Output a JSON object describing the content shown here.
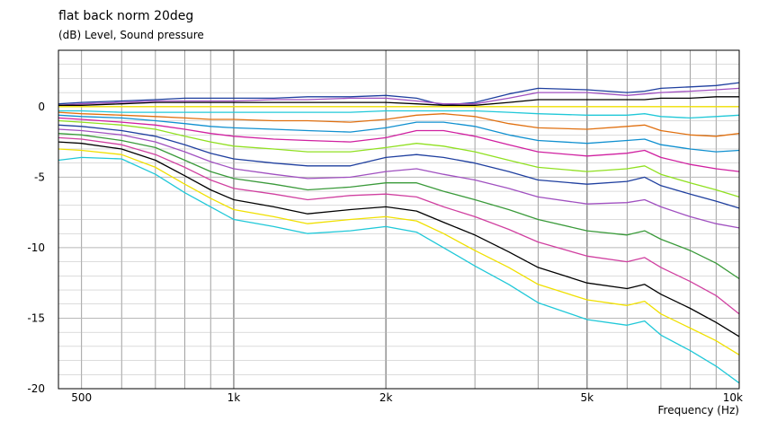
{
  "chart_data": {
    "type": "line",
    "title": "flat back norm 20deg",
    "ylabel": "(dB)  Level, Sound pressure",
    "xlabel": "Frequency  (Hz)",
    "xscale": "log",
    "xlim": [
      450,
      10000
    ],
    "ylim": [
      -20,
      4
    ],
    "grid": true,
    "xtick_labels": [
      {
        "value": 500,
        "label": "500"
      },
      {
        "value": 1000,
        "label": "1k"
      },
      {
        "value": 2000,
        "label": "2k"
      },
      {
        "value": 5000,
        "label": "5k"
      },
      {
        "value": 10000,
        "label": "10k"
      }
    ],
    "ytick_labels": [
      {
        "value": 0,
        "label": "0"
      },
      {
        "value": -5,
        "label": "-5"
      },
      {
        "value": -10,
        "label": "-10"
      },
      {
        "value": -15,
        "label": "-15"
      },
      {
        "value": -20,
        "label": "-20"
      }
    ],
    "x": [
      450,
      500,
      600,
      700,
      800,
      900,
      1000,
      1200,
      1400,
      1700,
      2000,
      2300,
      2600,
      3000,
      3500,
      4000,
      5000,
      6000,
      6500,
      7000,
      8000,
      9000,
      10000
    ],
    "series": [
      {
        "color": "#1f3f9f",
        "values": [
          0.2,
          0.3,
          0.4,
          0.5,
          0.6,
          0.6,
          0.6,
          0.6,
          0.7,
          0.7,
          0.8,
          0.6,
          0.1,
          0.3,
          0.9,
          1.3,
          1.2,
          1.0,
          1.1,
          1.3,
          1.4,
          1.5,
          1.7
        ]
      },
      {
        "color": "#a050c0",
        "values": [
          0.1,
          0.2,
          0.3,
          0.4,
          0.4,
          0.4,
          0.4,
          0.5,
          0.5,
          0.6,
          0.6,
          0.4,
          0.2,
          0.2,
          0.6,
          1.0,
          1.0,
          0.8,
          0.9,
          1.0,
          1.1,
          1.2,
          1.3
        ]
      },
      {
        "color": "#000000",
        "values": [
          0.1,
          0.1,
          0.2,
          0.3,
          0.3,
          0.3,
          0.3,
          0.3,
          0.3,
          0.3,
          0.3,
          0.2,
          0.1,
          0.1,
          0.3,
          0.5,
          0.5,
          0.5,
          0.5,
          0.6,
          0.6,
          0.7,
          0.7
        ]
      },
      {
        "color": "#f0e000",
        "values": [
          0.0,
          0.0,
          0.0,
          0.0,
          0.0,
          0.0,
          0.0,
          0.0,
          0.0,
          0.0,
          0.0,
          0.0,
          0.0,
          0.0,
          0.0,
          0.0,
          0.0,
          0.0,
          0.0,
          0.0,
          0.0,
          0.0,
          0.0
        ]
      },
      {
        "color": "#20c8d8",
        "values": [
          -0.3,
          -0.3,
          -0.4,
          -0.4,
          -0.4,
          -0.4,
          -0.4,
          -0.4,
          -0.4,
          -0.4,
          -0.3,
          -0.3,
          -0.3,
          -0.3,
          -0.4,
          -0.5,
          -0.6,
          -0.6,
          -0.5,
          -0.7,
          -0.8,
          -0.7,
          -0.6
        ]
      },
      {
        "color": "#e07010",
        "values": [
          -0.4,
          -0.5,
          -0.6,
          -0.7,
          -0.8,
          -0.9,
          -0.9,
          -1.0,
          -1.0,
          -1.1,
          -0.9,
          -0.6,
          -0.5,
          -0.7,
          -1.2,
          -1.5,
          -1.6,
          -1.4,
          -1.3,
          -1.7,
          -2.0,
          -2.1,
          -1.9
        ]
      },
      {
        "color": "#1090d0",
        "values": [
          -0.6,
          -0.7,
          -0.8,
          -1.0,
          -1.2,
          -1.4,
          -1.5,
          -1.6,
          -1.7,
          -1.8,
          -1.5,
          -1.1,
          -1.1,
          -1.4,
          -2.0,
          -2.4,
          -2.6,
          -2.4,
          -2.3,
          -2.7,
          -3.0,
          -3.2,
          -3.1
        ]
      },
      {
        "color": "#d020a0",
        "values": [
          -0.8,
          -0.9,
          -1.1,
          -1.3,
          -1.6,
          -1.9,
          -2.1,
          -2.3,
          -2.4,
          -2.5,
          -2.2,
          -1.7,
          -1.7,
          -2.1,
          -2.7,
          -3.2,
          -3.5,
          -3.3,
          -3.1,
          -3.6,
          -4.1,
          -4.4,
          -4.6
        ]
      },
      {
        "color": "#90e020",
        "values": [
          -1.0,
          -1.1,
          -1.3,
          -1.6,
          -2.1,
          -2.5,
          -2.8,
          -3.0,
          -3.2,
          -3.2,
          -2.9,
          -2.6,
          -2.8,
          -3.2,
          -3.8,
          -4.3,
          -4.6,
          -4.4,
          -4.2,
          -4.8,
          -5.4,
          -5.9,
          -6.4
        ]
      },
      {
        "color": "#1f3f9f",
        "values": [
          -1.3,
          -1.4,
          -1.7,
          -2.1,
          -2.7,
          -3.3,
          -3.7,
          -4.0,
          -4.2,
          -4.2,
          -3.6,
          -3.4,
          -3.6,
          -4.0,
          -4.6,
          -5.2,
          -5.5,
          -5.3,
          -5.0,
          -5.6,
          -6.2,
          -6.7,
          -7.2
        ]
      },
      {
        "color": "#a050c0",
        "values": [
          -1.6,
          -1.7,
          -2.0,
          -2.5,
          -3.2,
          -3.9,
          -4.4,
          -4.8,
          -5.1,
          -5.0,
          -4.6,
          -4.4,
          -4.8,
          -5.2,
          -5.8,
          -6.4,
          -6.9,
          -6.8,
          -6.6,
          -7.1,
          -7.8,
          -8.3,
          -8.6
        ]
      },
      {
        "color": "#3a9a3a",
        "values": [
          -1.9,
          -2.0,
          -2.4,
          -2.9,
          -3.8,
          -4.6,
          -5.1,
          -5.5,
          -5.9,
          -5.7,
          -5.4,
          -5.4,
          -6.0,
          -6.6,
          -7.3,
          -8.0,
          -8.8,
          -9.1,
          -8.8,
          -9.4,
          -10.2,
          -11.1,
          -12.2
        ]
      },
      {
        "color": "#d040a0",
        "values": [
          -2.2,
          -2.3,
          -2.7,
          -3.4,
          -4.3,
          -5.2,
          -5.8,
          -6.2,
          -6.6,
          -6.3,
          -6.2,
          -6.4,
          -7.1,
          -7.8,
          -8.7,
          -9.6,
          -10.6,
          -11.0,
          -10.7,
          -11.4,
          -12.4,
          -13.4,
          -14.7
        ]
      },
      {
        "color": "#000000",
        "values": [
          -2.5,
          -2.6,
          -3.0,
          -3.8,
          -4.9,
          -5.9,
          -6.6,
          -7.1,
          -7.6,
          -7.3,
          -7.1,
          -7.4,
          -8.2,
          -9.1,
          -10.3,
          -11.4,
          -12.5,
          -12.9,
          -12.6,
          -13.3,
          -14.3,
          -15.3,
          -16.3
        ]
      },
      {
        "color": "#f0e000",
        "values": [
          -3.0,
          -3.1,
          -3.4,
          -4.3,
          -5.5,
          -6.5,
          -7.3,
          -7.8,
          -8.3,
          -8.0,
          -7.8,
          -8.1,
          -9.0,
          -10.2,
          -11.4,
          -12.6,
          -13.7,
          -14.1,
          -13.8,
          -14.7,
          -15.7,
          -16.6,
          -17.6
        ]
      },
      {
        "color": "#20c8d8",
        "values": [
          -3.8,
          -3.6,
          -3.7,
          -4.8,
          -6.1,
          -7.1,
          -8.0,
          -8.5,
          -9.0,
          -8.8,
          -8.5,
          -8.9,
          -10.0,
          -11.3,
          -12.6,
          -13.9,
          -15.1,
          -15.5,
          -15.2,
          -16.2,
          -17.3,
          -18.4,
          -19.6
        ]
      }
    ]
  }
}
